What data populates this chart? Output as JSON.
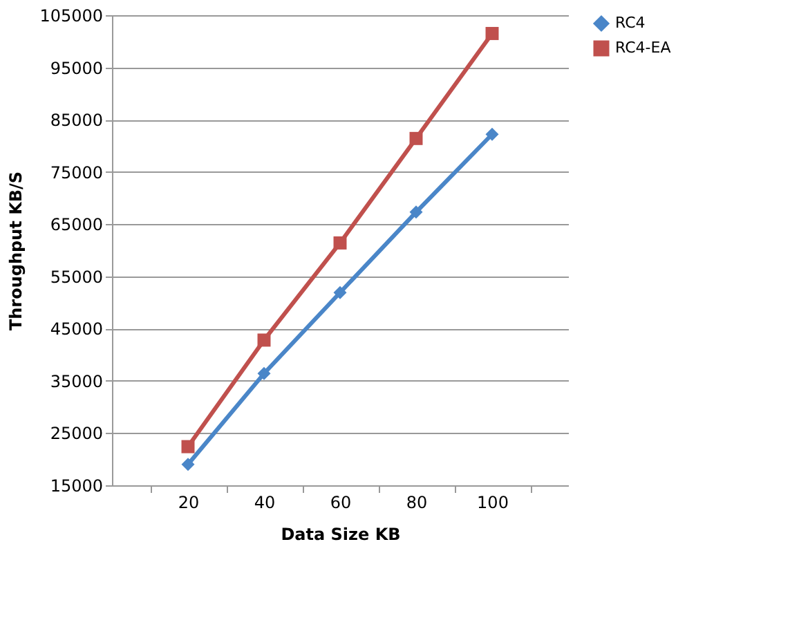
{
  "chart_data": {
    "type": "line",
    "xlabel": "Data Size KB",
    "ylabel": "Throughput  KB/S",
    "categories": [
      "20",
      "40",
      "60",
      "80",
      "100"
    ],
    "series": [
      {
        "name": "RC4",
        "color": "#4a86c8",
        "marker": "diamond",
        "values": [
          19000,
          36400,
          51900,
          67300,
          82200
        ]
      },
      {
        "name": "RC4-EA",
        "color": "#c0504d",
        "marker": "square",
        "values": [
          22400,
          42800,
          61400,
          81400,
          101500
        ]
      }
    ],
    "ylim": [
      15000,
      105000
    ],
    "yticks": [
      15000,
      25000,
      35000,
      45000,
      55000,
      65000,
      75000,
      85000,
      95000,
      105000
    ],
    "grid": "y",
    "legend": "right"
  }
}
